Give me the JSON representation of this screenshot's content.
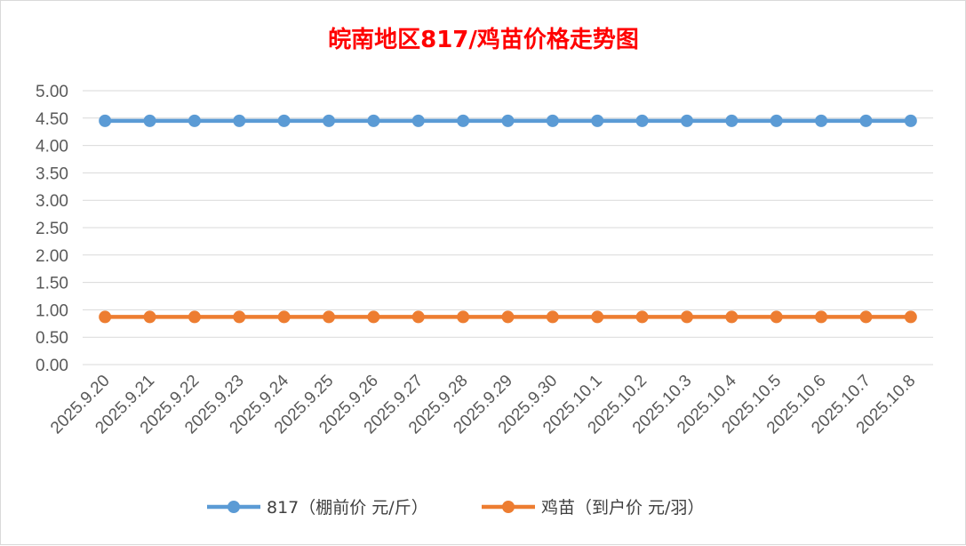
{
  "colors": {
    "title": "#ff0000",
    "series_817": "#5b9bd5",
    "series_chick": "#ed7d31",
    "grid": "#d9d9d9",
    "tick_text": "#595959"
  },
  "chart_data": {
    "type": "line",
    "title": "皖南地区817/鸡苗价格走势图",
    "xlabel": "",
    "ylabel": "",
    "ylim": [
      0,
      5
    ],
    "yticks": [
      "0.00",
      "0.50",
      "1.00",
      "1.50",
      "2.00",
      "2.50",
      "3.00",
      "3.50",
      "4.00",
      "4.50",
      "5.00"
    ],
    "grid": true,
    "legend_position": "bottom",
    "categories": [
      "2025.9.20",
      "2025.9.21",
      "2025.9.22",
      "2025.9.23",
      "2025.9.24",
      "2025.9.25",
      "2025.9.26",
      "2025.9.27",
      "2025.9.28",
      "2025.9.29",
      "2025.9.30",
      "2025.10.1",
      "2025.10.2",
      "2025.10.3",
      "2025.10.4",
      "2025.10.5",
      "2025.10.6",
      "2025.10.7",
      "2025.10.8"
    ],
    "series": [
      {
        "name": "817（棚前价 元/斤）",
        "color": "#5b9bd5",
        "values": [
          4.45,
          4.45,
          4.45,
          4.45,
          4.45,
          4.45,
          4.45,
          4.45,
          4.45,
          4.45,
          4.45,
          4.45,
          4.45,
          4.45,
          4.45,
          4.45,
          4.45,
          4.45,
          4.45
        ]
      },
      {
        "name": "鸡苗（到户价 元/羽）",
        "color": "#ed7d31",
        "values": [
          0.87,
          0.87,
          0.87,
          0.87,
          0.87,
          0.87,
          0.87,
          0.87,
          0.87,
          0.87,
          0.87,
          0.87,
          0.87,
          0.87,
          0.87,
          0.87,
          0.87,
          0.87,
          0.87
        ]
      }
    ]
  }
}
